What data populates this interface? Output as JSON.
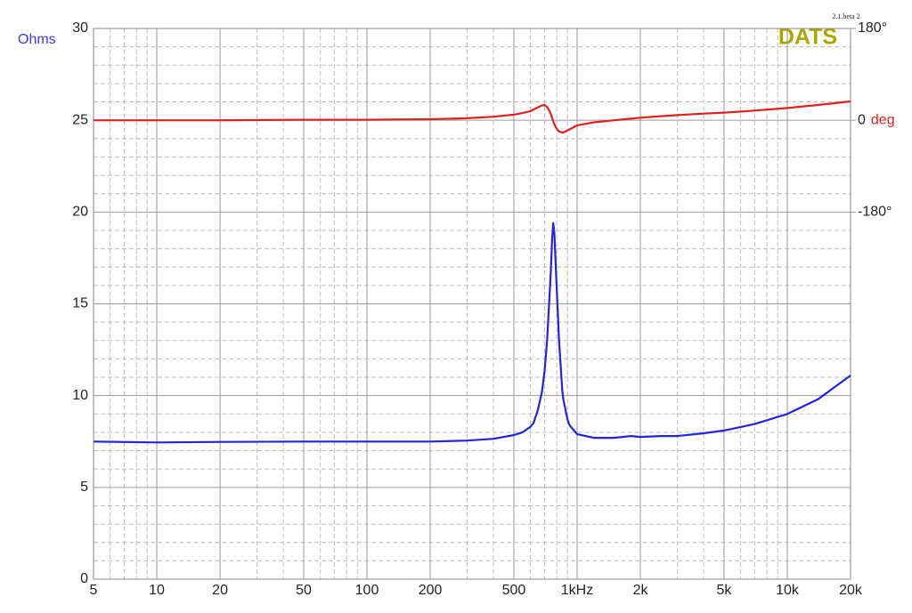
{
  "chart_data": {
    "type": "line",
    "title": "DATS",
    "version": "2.1.beta 2",
    "ylabel": "Ohms",
    "y2label": "deg",
    "xscale": "log",
    "grid": true,
    "xlim": [
      5,
      20000
    ],
    "xticks": [
      5,
      10,
      20,
      50,
      100,
      200,
      500,
      {
        "value": 1000,
        "label": "1kHz"
      },
      {
        "value": 2000,
        "label": "2k"
      },
      {
        "value": 5000,
        "label": "5k"
      },
      {
        "value": 10000,
        "label": "10k"
      },
      {
        "value": 20000,
        "label": "20k"
      }
    ],
    "xminorticks": [
      6,
      7,
      8,
      9,
      30,
      40,
      60,
      70,
      80,
      90,
      300,
      400,
      600,
      700,
      800,
      900,
      3000,
      4000,
      6000,
      7000,
      8000,
      9000
    ],
    "ylim": [
      0,
      30
    ],
    "yticks": [
      0,
      5,
      10,
      15,
      20,
      25,
      30
    ],
    "yminorticks": [
      1,
      2,
      3,
      4,
      6,
      7,
      8,
      9,
      11,
      12,
      13,
      14,
      16,
      17,
      18,
      19,
      21,
      22,
      23,
      24,
      26,
      27,
      28,
      29
    ],
    "y2lim": [
      -900,
      180
    ],
    "y2ticks": [
      {
        "value": 180,
        "label": "180°"
      },
      0,
      {
        "value": -180,
        "label": "-180°"
      }
    ],
    "x": [
      5,
      10,
      20,
      50,
      100,
      200,
      300,
      400,
      500,
      550,
      600,
      620,
      650,
      680,
      700,
      720,
      740,
      750,
      760,
      770,
      780,
      795,
      820,
      850,
      860,
      900,
      920,
      1000,
      1200,
      1500,
      1800,
      2000,
      2500,
      3000,
      4000,
      5000,
      7000,
      10000,
      14000,
      20000
    ],
    "series": [
      {
        "color": "#2424d8",
        "axis": "y",
        "values": [
          7.5,
          7.45,
          7.48,
          7.5,
          7.5,
          7.5,
          7.55,
          7.65,
          7.85,
          8.0,
          8.3,
          8.5,
          9.2,
          10.2,
          11.3,
          13.0,
          15.5,
          16.8,
          18.5,
          19.4,
          18.8,
          16.5,
          13.0,
          10.3,
          9.8,
          8.7,
          8.4,
          7.9,
          7.7,
          7.7,
          7.8,
          7.75,
          7.8,
          7.8,
          7.95,
          8.1,
          8.45,
          9.0,
          9.8,
          11.1
        ]
      },
      {
        "color": "#e02020",
        "axis": "y2",
        "values": [
          0,
          0,
          0,
          1,
          1,
          2,
          4,
          7,
          11,
          14,
          18,
          21,
          25,
          29,
          30,
          26,
          18,
          12,
          5,
          -2,
          -8,
          -15,
          -22,
          -24,
          -24,
          -20,
          -18,
          -10,
          -4,
          0,
          3,
          5,
          8,
          10,
          13,
          15,
          19,
          24,
          30,
          37
        ]
      }
    ]
  }
}
